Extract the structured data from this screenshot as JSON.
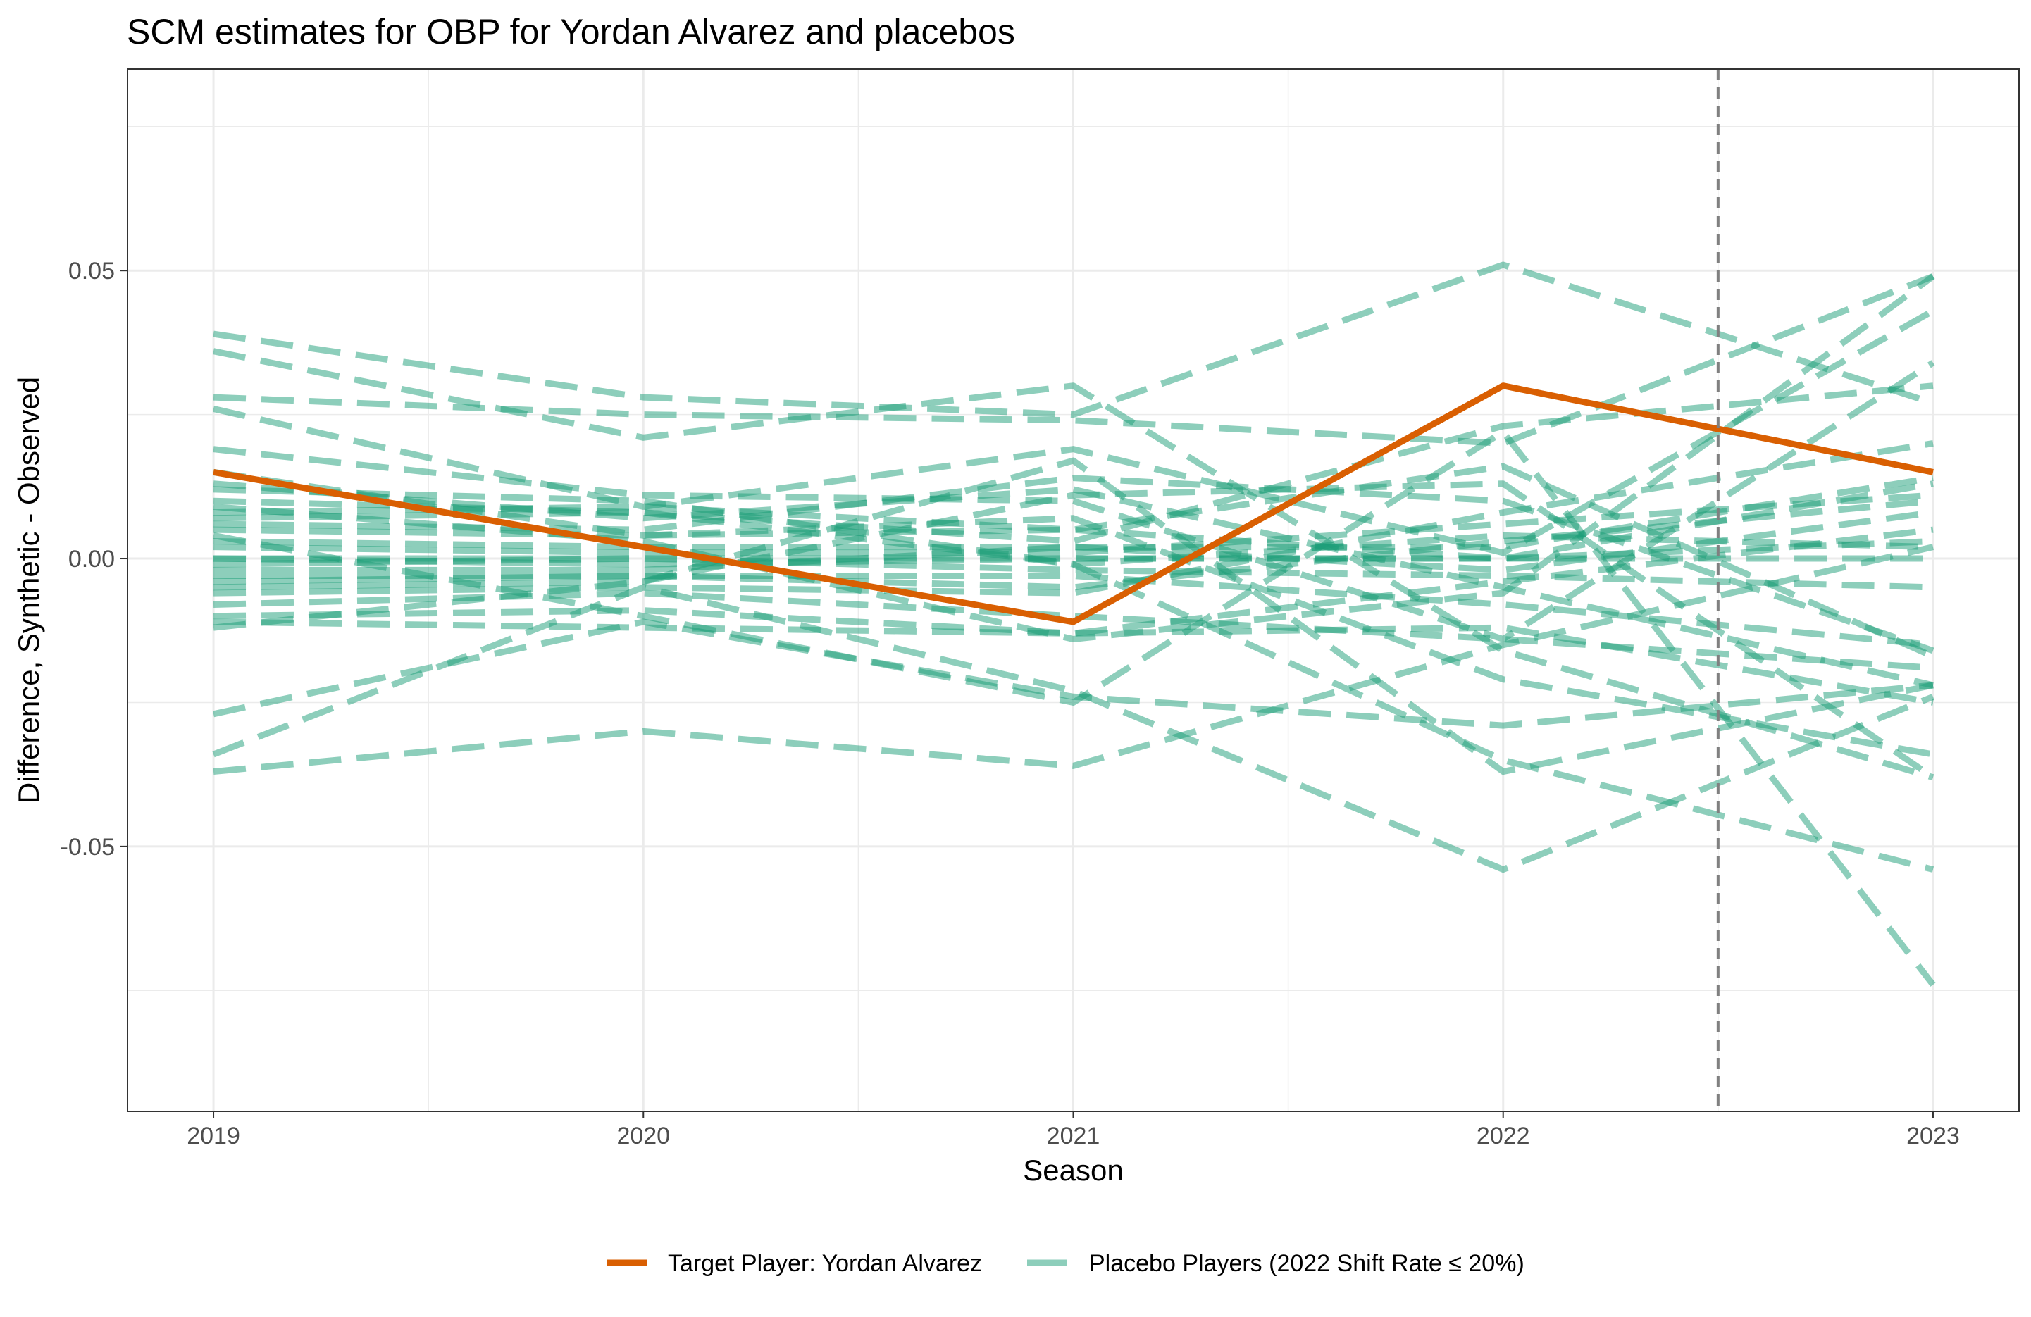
{
  "chart_data": {
    "type": "line",
    "title": "SCM estimates for OBP for Yordan Alvarez and placebos",
    "xlabel": "Season",
    "ylabel": "Difference, Synthetic - Observed",
    "x": [
      2019,
      2020,
      2021,
      2022,
      2023
    ],
    "x_tick_labels": [
      "2019",
      "2020",
      "2021",
      "2022",
      "2023"
    ],
    "xlim": [
      2018.8,
      2023.2
    ],
    "ylim": [
      -0.096,
      0.085
    ],
    "y_ticks": [
      -0.05,
      0,
      0.05
    ],
    "y_tick_labels": [
      "-0.05",
      "0.00",
      "0.05"
    ],
    "y_minor_ticks": [
      -0.075,
      -0.025,
      0.025,
      0.075
    ],
    "grid": true,
    "treatment_line_x": 2022.5,
    "legend_position": "bottom",
    "colors": {
      "target": "#d95f02",
      "placebo": "#1b9e77",
      "grid": "#ebebeb",
      "treatment_line": "#808080"
    },
    "target_series": {
      "name": "Target Player: Yordan Alvarez",
      "values": [
        0.015,
        0.002,
        -0.011,
        0.03,
        0.015
      ]
    },
    "placebo_legend_label": "Placebo Players (2022 Shift Rate ≤ 20%)",
    "placebo_series": [
      {
        "values": [
          0.039,
          0.028,
          0.025,
          0.051,
          0.027
        ]
      },
      {
        "values": [
          0.036,
          0.021,
          0.03,
          -0.016,
          -0.038
        ]
      },
      {
        "values": [
          0.028,
          0.025,
          0.024,
          0.02,
          0.049
        ]
      },
      {
        "values": [
          0.026,
          0.009,
          0.019,
          0.001,
          0.043
        ]
      },
      {
        "values": [
          0.019,
          0.011,
          0.01,
          -0.014,
          0.034
        ]
      },
      {
        "values": [
          0.015,
          0.004,
          0.007,
          -0.021,
          -0.034
        ]
      },
      {
        "values": [
          0.013,
          0.007,
          0.012,
          -0.005,
          -0.022
        ]
      },
      {
        "values": [
          0.01,
          0.008,
          0.003,
          0.023,
          0.03
        ]
      },
      {
        "values": [
          0.008,
          0.009,
          0.005,
          0.016,
          -0.017
        ]
      },
      {
        "values": [
          0.007,
          0.008,
          -0.001,
          0.004,
          0.002
        ]
      },
      {
        "values": [
          0.006,
          0.005,
          0.014,
          0.01,
          -0.016
        ]
      },
      {
        "values": [
          0.005,
          0.004,
          0.005,
          0.0,
          0.013
        ]
      },
      {
        "values": [
          0.003,
          0.002,
          0.002,
          -0.002,
          0.008
        ]
      },
      {
        "values": [
          0.002,
          0.001,
          0.001,
          0.006,
          0.011
        ]
      },
      {
        "values": [
          0.0,
          0.0,
          0.0,
          0.0,
          0.0
        ]
      },
      {
        "values": [
          0.0,
          -0.001,
          0.0,
          0.0,
          0.003
        ]
      },
      {
        "values": [
          -0.001,
          0.0,
          -0.002,
          -0.003,
          -0.005
        ]
      },
      {
        "values": [
          -0.002,
          -0.002,
          0.002,
          0.002,
          0.014
        ]
      },
      {
        "values": [
          -0.003,
          -0.003,
          -0.003,
          -0.008,
          -0.015
        ]
      },
      {
        "values": [
          -0.004,
          -0.003,
          -0.005,
          0.003,
          0.01
        ]
      },
      {
        "values": [
          -0.006,
          -0.005,
          -0.006,
          0.008,
          0.02
        ]
      },
      {
        "values": [
          -0.008,
          -0.006,
          -0.01,
          -0.014,
          -0.019
        ]
      },
      {
        "values": [
          -0.01,
          -0.009,
          -0.013,
          -0.004,
          0.005
        ]
      },
      {
        "values": [
          -0.011,
          -0.012,
          -0.013,
          -0.012,
          -0.025
        ]
      },
      {
        "values": [
          -0.012,
          -0.004,
          0.017,
          -0.037,
          -0.022
        ]
      },
      {
        "values": [
          -0.027,
          -0.011,
          -0.024,
          -0.029,
          -0.022
        ]
      },
      {
        "values": [
          -0.034,
          -0.005,
          -0.023,
          -0.054,
          -0.024
        ]
      },
      {
        "values": [
          -0.037,
          -0.03,
          -0.036,
          -0.015,
          0.002
        ]
      },
      {
        "values": [
          0.012,
          0.01,
          -0.001,
          -0.035,
          -0.054
        ]
      },
      {
        "values": [
          0.004,
          -0.01,
          -0.025,
          0.022,
          -0.074
        ]
      },
      {
        "values": [
          0.009,
          0.003,
          -0.014,
          -0.006,
          0.049
        ]
      },
      {
        "values": [
          -0.005,
          -0.004,
          0.011,
          0.013,
          -0.038
        ]
      }
    ]
  }
}
